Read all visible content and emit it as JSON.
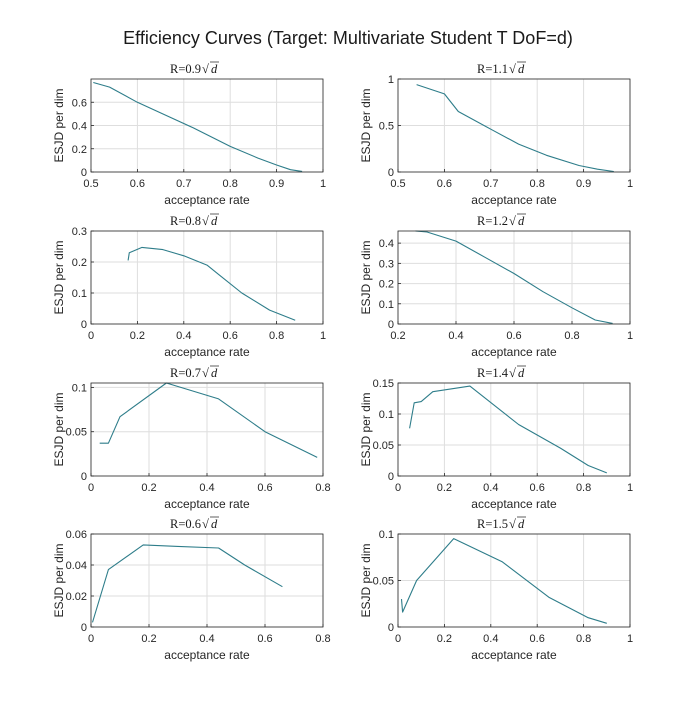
{
  "figure": {
    "title": "Efficiency Curves (Target: Multivariate Student T DoF=d)"
  },
  "style": {
    "line_color": "#2e7d8a",
    "grid_color": "#dedede",
    "axes_color": "#262626"
  },
  "chart_data": [
    {
      "type": "line",
      "title_prefix": "R=0.9",
      "title_sqrt": "d",
      "xlabel": "acceptance rate",
      "ylabel": "ESJD per dim",
      "xlim": [
        0.5,
        1
      ],
      "ylim": [
        0,
        0.8
      ],
      "xticks": [
        0.5,
        0.6,
        0.7,
        0.8,
        0.9,
        1
      ],
      "xtick_labels": [
        "0.5",
        "0.6",
        "0.7",
        "0.8",
        "0.9",
        "1"
      ],
      "yticks": [
        0,
        0.2,
        0.4,
        0.6
      ],
      "ytick_labels": [
        "0",
        "0.2",
        "0.4",
        "0.6"
      ],
      "x": [
        0.505,
        0.54,
        0.6,
        0.66,
        0.72,
        0.8,
        0.86,
        0.9,
        0.93,
        0.955
      ],
      "y": [
        0.77,
        0.73,
        0.6,
        0.49,
        0.38,
        0.22,
        0.12,
        0.06,
        0.02,
        0.005
      ]
    },
    {
      "type": "line",
      "title_prefix": "R=1.1",
      "title_sqrt": "d",
      "xlabel": "acceptance rate",
      "ylabel": "ESJD per dim",
      "xlim": [
        0.5,
        1
      ],
      "ylim": [
        0,
        1
      ],
      "xticks": [
        0.5,
        0.6,
        0.7,
        0.8,
        0.9,
        1
      ],
      "xtick_labels": [
        "0.5",
        "0.6",
        "0.7",
        "0.8",
        "0.9",
        "1"
      ],
      "yticks": [
        0,
        0.5,
        1
      ],
      "ytick_labels": [
        "0",
        "0.5",
        "1"
      ],
      "x": [
        0.54,
        0.6,
        0.63,
        0.7,
        0.76,
        0.82,
        0.89,
        0.93,
        0.965
      ],
      "y": [
        0.94,
        0.84,
        0.65,
        0.46,
        0.3,
        0.18,
        0.07,
        0.03,
        0.005
      ]
    },
    {
      "type": "line",
      "title_prefix": "R=0.8",
      "title_sqrt": "d",
      "xlabel": "acceptance rate",
      "ylabel": "ESJD per dim",
      "xlim": [
        0,
        1
      ],
      "ylim": [
        0,
        0.3
      ],
      "xticks": [
        0,
        0.2,
        0.4,
        0.6,
        0.8,
        1
      ],
      "xtick_labels": [
        "0",
        "0.2",
        "0.4",
        "0.6",
        "0.8",
        "1"
      ],
      "yticks": [
        0,
        0.1,
        0.2,
        0.3
      ],
      "ytick_labels": [
        "0",
        "0.1",
        "0.2",
        "0.3"
      ],
      "x": [
        0.16,
        0.165,
        0.22,
        0.31,
        0.4,
        0.5,
        0.55,
        0.65,
        0.77,
        0.88
      ],
      "y": [
        0.205,
        0.23,
        0.247,
        0.24,
        0.22,
        0.19,
        0.16,
        0.1,
        0.045,
        0.012
      ]
    },
    {
      "type": "line",
      "title_prefix": "R=1.2",
      "title_sqrt": "d",
      "xlabel": "acceptance rate",
      "ylabel": "ESJD per dim",
      "xlim": [
        0.2,
        1
      ],
      "ylim": [
        0,
        0.46
      ],
      "xticks": [
        0.2,
        0.4,
        0.6,
        0.8,
        1
      ],
      "xtick_labels": [
        "0.2",
        "0.4",
        "0.6",
        "0.8",
        "1"
      ],
      "yticks": [
        0,
        0.1,
        0.2,
        0.3,
        0.4
      ],
      "ytick_labels": [
        "0",
        "0.1",
        "0.2",
        "0.3",
        "0.4"
      ],
      "x": [
        0.26,
        0.3,
        0.4,
        0.5,
        0.6,
        0.7,
        0.8,
        0.88,
        0.94
      ],
      "y": [
        0.46,
        0.455,
        0.41,
        0.33,
        0.25,
        0.16,
        0.08,
        0.02,
        0.003
      ]
    },
    {
      "type": "line",
      "title_prefix": "R=0.7",
      "title_sqrt": "d",
      "xlabel": "acceptance rate",
      "ylabel": "ESJD per dim",
      "xlim": [
        0,
        0.8
      ],
      "ylim": [
        0,
        0.105
      ],
      "xticks": [
        0,
        0.2,
        0.4,
        0.6,
        0.8
      ],
      "xtick_labels": [
        "0",
        "0.2",
        "0.4",
        "0.6",
        "0.8"
      ],
      "yticks": [
        0,
        0.05,
        0.1
      ],
      "ytick_labels": [
        "0",
        "0.05",
        "0.1"
      ],
      "x": [
        0.03,
        0.06,
        0.1,
        0.26,
        0.44,
        0.6,
        0.78
      ],
      "y": [
        0.037,
        0.037,
        0.067,
        0.105,
        0.087,
        0.05,
        0.021
      ]
    },
    {
      "type": "line",
      "title_prefix": "R=1.4",
      "title_sqrt": "d",
      "xlabel": "acceptance rate",
      "ylabel": "ESJD per dim",
      "xlim": [
        0,
        1
      ],
      "ylim": [
        0,
        0.15
      ],
      "xticks": [
        0,
        0.2,
        0.4,
        0.6,
        0.8,
        1
      ],
      "xtick_labels": [
        "0",
        "0.2",
        "0.4",
        "0.6",
        "0.8",
        "1"
      ],
      "yticks": [
        0,
        0.05,
        0.1,
        0.15
      ],
      "ytick_labels": [
        "0",
        "0.05",
        "0.1",
        "0.15"
      ],
      "x": [
        0.05,
        0.07,
        0.1,
        0.15,
        0.31,
        0.52,
        0.7,
        0.82,
        0.9
      ],
      "y": [
        0.077,
        0.118,
        0.12,
        0.136,
        0.145,
        0.083,
        0.045,
        0.017,
        0.005
      ]
    },
    {
      "type": "line",
      "title_prefix": "R=0.6",
      "title_sqrt": "d",
      "xlabel": "acceptance rate",
      "ylabel": "ESJD per dim",
      "xlim": [
        0,
        0.8
      ],
      "ylim": [
        0,
        0.06
      ],
      "xticks": [
        0,
        0.2,
        0.4,
        0.6,
        0.8
      ],
      "xtick_labels": [
        "0",
        "0.2",
        "0.4",
        "0.6",
        "0.8"
      ],
      "yticks": [
        0,
        0.02,
        0.04,
        0.06
      ],
      "ytick_labels": [
        "0",
        "0.02",
        "0.04",
        "0.06"
      ],
      "x": [
        0.005,
        0.06,
        0.18,
        0.3,
        0.44,
        0.53,
        0.66
      ],
      "y": [
        0.003,
        0.037,
        0.053,
        0.052,
        0.051,
        0.04,
        0.026
      ]
    },
    {
      "type": "line",
      "title_prefix": "R=1.5",
      "title_sqrt": "d",
      "xlabel": "acceptance rate",
      "ylabel": "ESJD per dim",
      "xlim": [
        0,
        1
      ],
      "ylim": [
        0,
        0.1
      ],
      "xticks": [
        0,
        0.2,
        0.4,
        0.6,
        0.8,
        1
      ],
      "xtick_labels": [
        "0",
        "0.2",
        "0.4",
        "0.6",
        "0.8",
        "1"
      ],
      "yticks": [
        0,
        0.05,
        0.1
      ],
      "ytick_labels": [
        "0",
        "0.05",
        "0.1"
      ],
      "x": [
        0.015,
        0.02,
        0.08,
        0.24,
        0.45,
        0.65,
        0.82,
        0.9
      ],
      "y": [
        0.03,
        0.016,
        0.05,
        0.095,
        0.07,
        0.032,
        0.01,
        0.004
      ]
    }
  ]
}
